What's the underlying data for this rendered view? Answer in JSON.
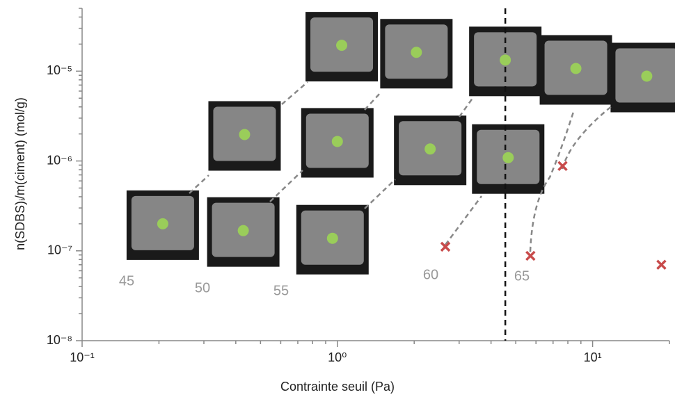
{
  "chart_data": {
    "type": "scatter",
    "x_label": "Contrainte seuil (Pa)",
    "y_label": "n(SDBS)ᵢ/m(ciment) (mol/g)",
    "xscale": "log",
    "yscale": "log",
    "xlim": [
      0.1,
      20
    ],
    "ylim": [
      1e-08,
      5e-05
    ],
    "xticks": [
      {
        "value": 0.1,
        "label": "10⁻¹"
      },
      {
        "value": 1,
        "label": "10⁰"
      },
      {
        "value": 10,
        "label": "10¹"
      }
    ],
    "yticks": [
      {
        "value": 1e-08,
        "label": "10⁻⁸"
      },
      {
        "value": 1e-07,
        "label": "10⁻⁷"
      },
      {
        "value": 1e-06,
        "label": "10⁻⁶"
      },
      {
        "value": 1e-05,
        "label": "10⁻⁵"
      }
    ],
    "vline": 4.55,
    "series": [
      {
        "color": "#9acd5a",
        "marker": "circle",
        "x": [
          0.207,
          0.428,
          0.957,
          0.433,
          1.0,
          2.31,
          4.67,
          1.04,
          2.04,
          4.55,
          8.6,
          16.3
        ],
        "values": [
          2e-07,
          1.68e-07,
          1.38e-07,
          1.97e-06,
          1.65e-06,
          1.36e-06,
          1.09e-06,
          1.94e-05,
          1.62e-05,
          1.33e-05,
          1.07e-05,
          8.8e-06
        ]
      },
      {
        "color": "#c84b4b",
        "marker": "cross",
        "x": [
          2.65,
          5.71,
          7.63,
          18.6
        ],
        "values": [
          1.11e-07,
          8.8e-08,
          8.8e-07,
          7e-08
        ]
      }
    ],
    "annotations": [
      "45",
      "50",
      "55",
      "60",
      "65"
    ]
  }
}
